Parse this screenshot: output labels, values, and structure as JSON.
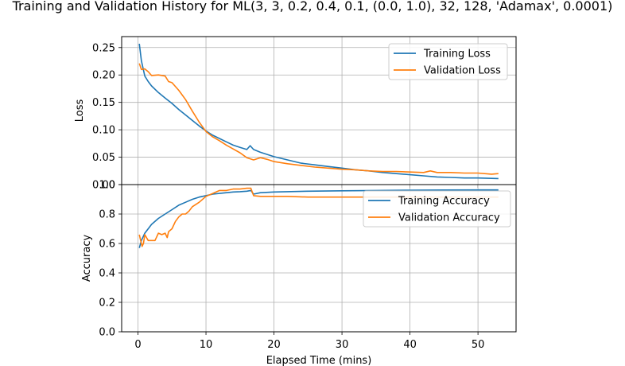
{
  "title": "Training and Validation History for ML(3, 3, 0.2, 0.4, 0.1, (0.0, 1.0), 32, 128, 'Adamax', 0.0001)",
  "chart_data": [
    {
      "type": "line",
      "xlabel": "Elapsed Time (mins)",
      "ylabel": "Loss",
      "xlim": [
        -2.4,
        55.6
      ],
      "ylim": [
        0,
        0.27
      ],
      "grid": true,
      "legend_position": "top-right",
      "xticks": [
        0,
        10,
        20,
        30,
        40,
        50
      ],
      "yticks": [
        0.0,
        0.05,
        0.1,
        0.15,
        0.2,
        0.25
      ],
      "ytick_labels": [
        "0.00",
        "0.05",
        "0.10",
        "0.15",
        "0.20",
        "0.25"
      ],
      "series": [
        {
          "name": "Training Loss",
          "color": "#1f77b4",
          "x": [
            0.2,
            0.5,
            1,
            1.5,
            2,
            3,
            4,
            5,
            6,
            7,
            8,
            9,
            10,
            11,
            12,
            13,
            14,
            15,
            16,
            16.5,
            17,
            18,
            19,
            20,
            22,
            24,
            26,
            28,
            30,
            32,
            34,
            36,
            38,
            40,
            42,
            44,
            46,
            48,
            50,
            53
          ],
          "y": [
            0.257,
            0.226,
            0.198,
            0.188,
            0.18,
            0.168,
            0.158,
            0.148,
            0.137,
            0.127,
            0.117,
            0.107,
            0.098,
            0.09,
            0.084,
            0.078,
            0.072,
            0.068,
            0.064,
            0.071,
            0.064,
            0.059,
            0.055,
            0.051,
            0.045,
            0.039,
            0.036,
            0.033,
            0.03,
            0.027,
            0.025,
            0.022,
            0.02,
            0.018,
            0.016,
            0.014,
            0.013,
            0.012,
            0.012,
            0.011
          ]
        },
        {
          "name": "Validation Loss",
          "color": "#ff7f0e",
          "x": [
            0.2,
            0.5,
            1,
            1.5,
            2,
            3,
            4,
            4.5,
            5,
            6,
            7,
            8,
            9,
            10,
            11,
            12,
            13,
            14,
            15,
            16,
            17,
            18,
            19,
            20,
            22,
            24,
            26,
            28,
            30,
            32,
            34,
            36,
            38,
            40,
            42,
            43,
            44,
            46,
            48,
            50,
            52,
            53
          ],
          "y": [
            0.221,
            0.21,
            0.211,
            0.206,
            0.199,
            0.2,
            0.198,
            0.188,
            0.186,
            0.172,
            0.155,
            0.134,
            0.114,
            0.097,
            0.087,
            0.08,
            0.072,
            0.065,
            0.058,
            0.049,
            0.045,
            0.049,
            0.046,
            0.042,
            0.038,
            0.035,
            0.032,
            0.03,
            0.028,
            0.027,
            0.025,
            0.024,
            0.024,
            0.023,
            0.022,
            0.025,
            0.022,
            0.022,
            0.021,
            0.021,
            0.019,
            0.02
          ]
        }
      ]
    },
    {
      "type": "line",
      "xlabel": "Elapsed Time (mins)",
      "ylabel": "Accuracy",
      "xlim": [
        -2.4,
        55.6
      ],
      "ylim": [
        0,
        1.0
      ],
      "grid": true,
      "legend_position": "top-right",
      "xticks": [
        0,
        10,
        20,
        30,
        40,
        50
      ],
      "yticks": [
        0.0,
        0.2,
        0.4,
        0.6,
        0.8,
        1.0
      ],
      "ytick_labels": [
        "0.0",
        "0.2",
        "0.4",
        "0.6",
        "0.8",
        "1.0"
      ],
      "series": [
        {
          "name": "Training Accuracy",
          "color": "#1f77b4",
          "x": [
            0.2,
            0.5,
            1,
            1.5,
            2,
            3,
            4,
            5,
            6,
            7,
            8,
            9,
            10,
            11,
            12,
            13,
            14,
            15,
            16,
            16.6,
            17,
            18,
            20,
            25,
            30,
            35,
            40,
            45,
            50,
            53
          ],
          "y": [
            0.57,
            0.62,
            0.67,
            0.7,
            0.73,
            0.77,
            0.8,
            0.83,
            0.86,
            0.88,
            0.9,
            0.915,
            0.925,
            0.935,
            0.94,
            0.945,
            0.95,
            0.952,
            0.955,
            0.96,
            0.935,
            0.945,
            0.95,
            0.955,
            0.958,
            0.96,
            0.962,
            0.963,
            0.964,
            0.964
          ]
        },
        {
          "name": "Validation Accuracy",
          "color": "#ff7f0e",
          "x": [
            0.2,
            0.4,
            0.6,
            0.8,
            1,
            1.5,
            2,
            2.5,
            3,
            3.5,
            4,
            4.3,
            4.5,
            5,
            5.5,
            6,
            6.5,
            7,
            7.5,
            8,
            9,
            10,
            11,
            12,
            13,
            14,
            15,
            16,
            16.6,
            17,
            18,
            20,
            22,
            25,
            30,
            35,
            40,
            45,
            50,
            53
          ],
          "y": [
            0.66,
            0.62,
            0.58,
            0.6,
            0.66,
            0.62,
            0.62,
            0.62,
            0.67,
            0.66,
            0.67,
            0.64,
            0.68,
            0.7,
            0.75,
            0.78,
            0.8,
            0.8,
            0.82,
            0.85,
            0.88,
            0.92,
            0.94,
            0.96,
            0.96,
            0.97,
            0.97,
            0.975,
            0.975,
            0.925,
            0.92,
            0.92,
            0.92,
            0.915,
            0.915,
            0.915,
            0.915,
            0.915,
            0.915,
            0.915
          ]
        }
      ]
    }
  ]
}
